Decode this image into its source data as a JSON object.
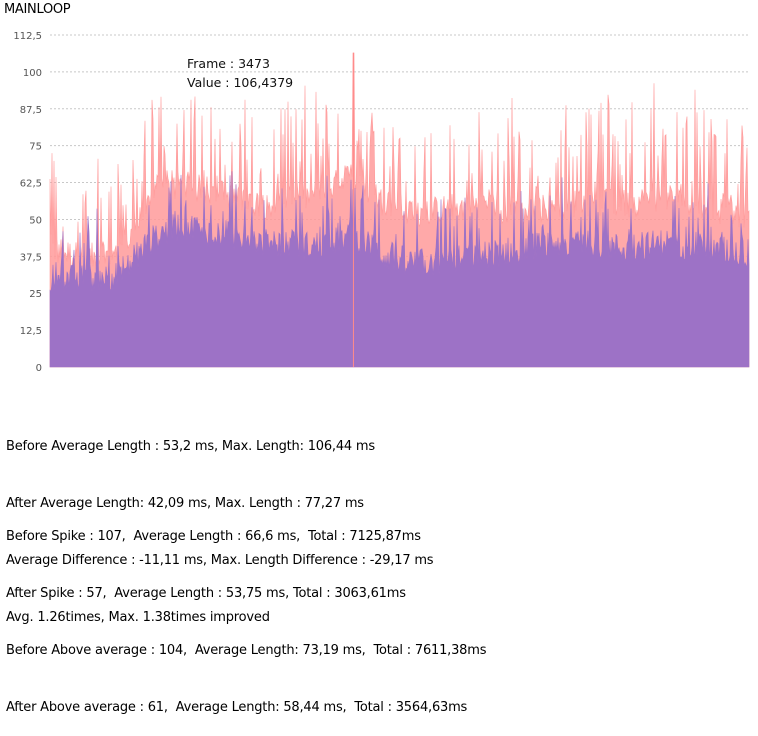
{
  "chart_data": {
    "type": "area",
    "title": "MAINLOOP",
    "ylim": [
      0,
      112.5
    ],
    "yticks": [
      0,
      12.5,
      25,
      37.5,
      50,
      62.5,
      75,
      87.5,
      100,
      112.5
    ],
    "ytick_labels": [
      "0",
      "12,5",
      "25",
      "37,5",
      "50",
      "62,5",
      "75",
      "87,5",
      "100",
      "112,5"
    ],
    "grid": true,
    "frame_count": 8000,
    "series": [
      {
        "role": "before",
        "color": "#ff9a9a",
        "profile_frames": [
          0,
          400,
          800,
          1000,
          1200,
          1500,
          2000,
          2500,
          3000,
          3473,
          3800,
          4200,
          4600,
          5000,
          5400,
          5800,
          6200,
          6600,
          7000,
          7400,
          8000
        ],
        "profile_values": [
          40,
          37,
          38,
          48,
          60,
          62,
          58,
          55,
          58,
          65,
          56,
          52,
          54,
          55,
          52,
          55,
          56,
          55,
          58,
          56,
          50
        ]
      },
      {
        "role": "after",
        "color": "#9d72c6",
        "profile_frames": [
          0,
          400,
          800,
          1000,
          1200,
          1500,
          2000,
          2500,
          3000,
          3473,
          3800,
          4200,
          4600,
          5000,
          5400,
          5800,
          6200,
          6600,
          7000,
          7400,
          8000
        ],
        "profile_values": [
          30,
          30,
          31,
          37,
          44,
          48,
          45,
          42,
          41,
          44,
          38,
          35,
          36,
          38,
          40,
          42,
          42,
          40,
          42,
          41,
          38
        ]
      }
    ],
    "highlight": {
      "frame": 3473,
      "value": 106.4379
    },
    "tooltip": {
      "frame_label": "Frame : 3473",
      "value_label": "Value : 106,4379"
    }
  },
  "stats": {
    "block1": [
      "Before Average Length : 53,2 ms, Max. Length: 106,44 ms",
      "After Average Length: 42,09 ms, Max. Length : 77,27 ms",
      "Average Difference : -11,11 ms, Max. Length Difference : -29,17 ms",
      "Avg. 1.26times, Max. 1.38times improved"
    ],
    "block2": [
      "Before Spike : 107,  Average Length : 66,6 ms,  Total : 7125,87ms",
      "After Spike : 57,  Average Length : 53,75 ms, Total : 3063,61ms",
      "Before Above average : 104,  Average Length: 73,19 ms,  Total : 7611,38ms",
      "After Above average : 61,  Average Length: 58,44 ms,  Total : 3564,63ms"
    ]
  }
}
